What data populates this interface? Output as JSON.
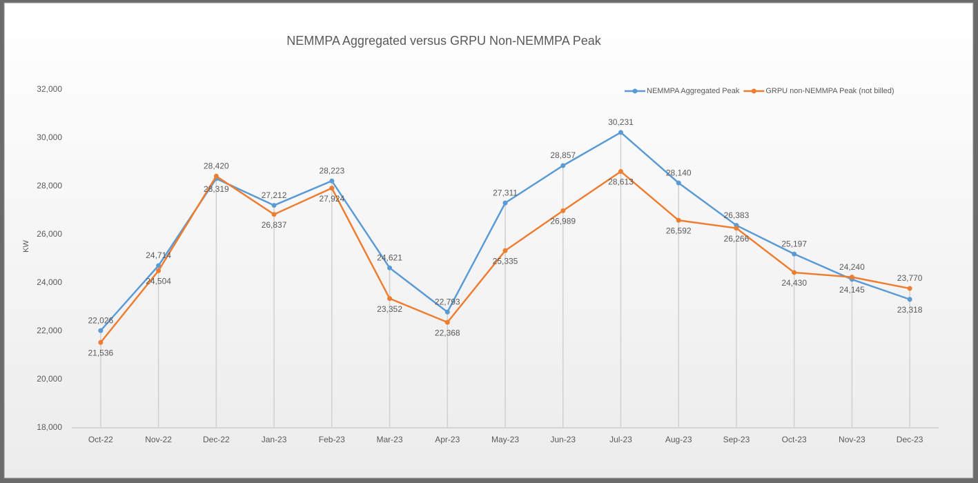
{
  "chart_data": {
    "type": "line",
    "title": "NEMMPA Aggregated versus GRPU Non-NEMMPA Peak",
    "y_label": "KW",
    "categories": [
      "Oct-22",
      "Nov-22",
      "Dec-22",
      "Jan-23",
      "Feb-23",
      "Mar-23",
      "Apr-23",
      "May-23",
      "Jun-23",
      "Jul-23",
      "Aug-23",
      "Sep-23",
      "Oct-23",
      "Nov-23",
      "Dec-23"
    ],
    "series": [
      {
        "name": "NEMMPA Aggregated Peak",
        "color": "#5b9bd5",
        "values": [
          22026,
          24714,
          28319,
          27212,
          28223,
          24621,
          22793,
          27311,
          28857,
          30231,
          28140,
          26383,
          25197,
          24145,
          23318
        ],
        "value_labels": [
          "22,026",
          "24,714",
          "28,319",
          "27,212",
          "28,223",
          "24,621",
          "22,793",
          "27,311",
          "28,857",
          "30,231",
          "28,140",
          "26,383",
          "25,197",
          "24,145",
          "23,318"
        ]
      },
      {
        "name": "GRPU non-NEMMPA Peak (not billed)",
        "color": "#ed7d31",
        "values": [
          21536,
          24504,
          28420,
          26837,
          27924,
          23352,
          22368,
          25335,
          26989,
          28613,
          26592,
          26266,
          24430,
          24240,
          23770
        ],
        "value_labels": [
          "21,536",
          "24,504",
          "28,420",
          "26,837",
          "27,924",
          "23,352",
          "22,368",
          "25,335",
          "26,989",
          "28,613",
          "26,592",
          "26,266",
          "24,430",
          "24,240",
          "23,770"
        ]
      }
    ],
    "ylim": [
      18000,
      32000
    ],
    "yticks": [
      {
        "value": 18000,
        "label": "18,000"
      },
      {
        "value": 20000,
        "label": "20,000"
      },
      {
        "value": 22000,
        "label": "22,000"
      },
      {
        "value": 24000,
        "label": "24,000"
      },
      {
        "value": 26000,
        "label": "26,000"
      },
      {
        "value": 28000,
        "label": "28,000"
      },
      {
        "value": 30000,
        "label": "30,000"
      },
      {
        "value": 32000,
        "label": "32,000"
      }
    ],
    "legend": "top-right"
  }
}
